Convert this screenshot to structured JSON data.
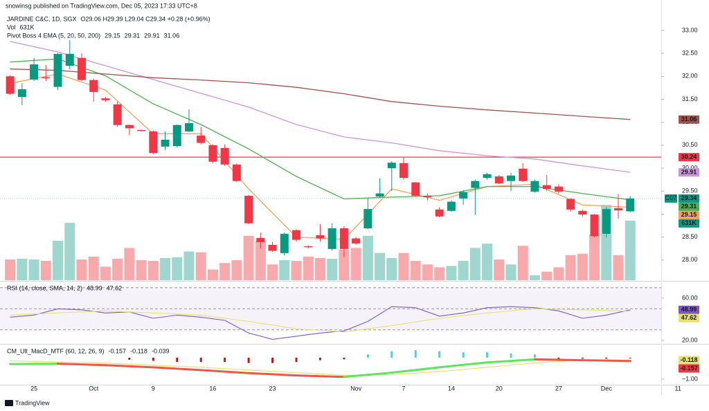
{
  "header": {
    "publisher": "snowinsg published on TradingView.com, Dec 05, 2023 17:33 UTC+8",
    "symbol": "JARDINE C&C, 1D, SGX",
    "quote": "O29.06 H29.39 L29.04 C29.34 +0.28 (+0.96%)"
  },
  "footer": "TradingView",
  "chart_data": [
    {
      "type": "candlestick",
      "xlim": [
        -0.85,
        54.6
      ],
      "xticks": [
        {
          "value": 2,
          "label": "25"
        },
        {
          "value": 7,
          "label": "Oct"
        },
        {
          "value": 12,
          "label": "9"
        },
        {
          "value": 17,
          "label": "16"
        },
        {
          "value": 22,
          "label": "23"
        },
        {
          "value": 29,
          "label": "Nov"
        },
        {
          "value": 33,
          "label": "7"
        },
        {
          "value": 37,
          "label": "14"
        },
        {
          "value": 41,
          "label": "20"
        },
        {
          "value": 46,
          "label": "27"
        },
        {
          "value": 50,
          "label": "Dec"
        },
        {
          "value": 56,
          "label": "11"
        }
      ],
      "ylim": [
        27.56,
        33.21
      ],
      "yticks": [
        {
          "value": 28,
          "label": "28.00"
        },
        {
          "value": 28.5,
          "label": "28.50"
        },
        {
          "value": 29,
          "label": "29.00"
        },
        {
          "value": 29.5,
          "label": "29.50"
        },
        {
          "value": 30,
          "label": "30.00"
        },
        {
          "value": 30.5,
          "label": "30.50"
        },
        {
          "value": 31,
          "label": "31.00"
        },
        {
          "value": 31.5,
          "label": "31.50"
        },
        {
          "value": 32,
          "label": "32.00"
        },
        {
          "value": 32.5,
          "label": "32.50"
        },
        {
          "value": 33,
          "label": "33.00"
        }
      ],
      "up_color": "#089981",
      "down_color": "#f23645",
      "open": [
        32.0,
        31.55,
        31.93,
        31.98,
        31.77,
        32.23,
        32.4,
        31.92,
        31.52,
        31.39,
        30.94,
        30.83,
        30.8,
        30.47,
        30.48,
        30.8,
        30.71,
        30.5,
        30.44,
        30.08,
        29.4,
        28.48,
        28.33,
        28.15,
        28.65,
        28.3,
        28.54,
        28.24,
        28.69,
        28.47,
        28.69,
        29.38,
        30.0,
        30.11,
        29.69,
        29.4,
        29.1,
        29.07,
        29.34,
        29.57,
        29.79,
        29.82,
        29.72,
        29.99,
        29.49,
        29.63,
        29.6,
        29.33,
        29.07,
        28.99,
        28.57,
        29.13,
        29.06
      ],
      "high": [
        32.02,
        31.85,
        32.4,
        32.25,
        32.5,
        32.79,
        32.5,
        31.95,
        31.55,
        31.45,
        30.95,
        30.84,
        30.82,
        30.8,
        30.95,
        31.28,
        30.9,
        30.52,
        30.52,
        30.1,
        29.42,
        28.6,
        28.4,
        28.6,
        28.67,
        28.32,
        28.78,
        28.8,
        28.74,
        28.5,
        29.36,
        29.78,
        30.15,
        30.23,
        29.7,
        29.45,
        29.15,
        29.3,
        29.52,
        29.75,
        29.9,
        29.85,
        29.9,
        30.11,
        29.75,
        29.85,
        29.65,
        29.35,
        29.1,
        29.0,
        29.15,
        29.44,
        29.39
      ],
      "low": [
        31.6,
        31.37,
        31.9,
        31.9,
        31.7,
        32.15,
        31.9,
        31.45,
        31.45,
        30.9,
        30.72,
        30.8,
        30.3,
        30.4,
        30.45,
        30.78,
        30.52,
        30.1,
        30.05,
        29.7,
        28.78,
        28.25,
        28.18,
        28.1,
        28.4,
        28.25,
        28.4,
        28.2,
        28.06,
        28.33,
        28.67,
        29.35,
        29.5,
        29.75,
        29.38,
        29.3,
        28.93,
        29.05,
        29.2,
        28.98,
        29.75,
        29.65,
        29.5,
        29.7,
        29.47,
        29.5,
        29.45,
        29.05,
        28.95,
        28.5,
        28.49,
        28.9,
        29.04
      ],
      "close": [
        31.62,
        31.72,
        32.26,
        31.96,
        32.49,
        32.49,
        31.92,
        31.66,
        31.48,
        30.94,
        30.87,
        30.81,
        30.33,
        30.62,
        30.94,
        30.98,
        30.55,
        30.14,
        30.08,
        29.72,
        28.8,
        28.39,
        28.2,
        28.57,
        28.44,
        28.28,
        28.47,
        28.69,
        28.24,
        28.36,
        29.11,
        29.45,
        30.12,
        29.79,
        29.4,
        29.37,
        28.95,
        29.27,
        29.48,
        29.72,
        29.87,
        29.67,
        29.84,
        29.72,
        29.72,
        29.55,
        29.49,
        29.1,
        28.99,
        28.52,
        29.11,
        29.08,
        29.34
      ],
      "close_tag": "C07",
      "close_label": "29.34",
      "close_line_color": "#9ad9ce",
      "volume": {
        "name": "Vol",
        "last_label": "631K",
        "ylim": [
          0,
          2750
        ],
        "up_color": "#9fd6cd",
        "down_color": "#f7a9ab",
        "values": [
          220,
          228,
          220,
          205,
          418,
          608,
          220,
          251,
          144,
          228,
          342,
          213,
          205,
          236,
          243,
          304,
          296,
          114,
          182,
          213,
          471,
          418,
          167,
          213,
          205,
          251,
          236,
          228,
          327,
          342,
          471,
          289,
          236,
          289,
          205,
          167,
          137,
          152,
          205,
          342,
          388,
          220,
          167,
          365,
          53,
          91,
          137,
          266,
          281,
          486,
          798,
          266,
          631
        ]
      },
      "indicator": "Pivot Boss 4 EMA (5, 20, 50, 200)",
      "series": [
        {
          "last_label": "29.15",
          "color": "#f5a25d",
          "x": [
            0,
            4,
            8,
            12,
            16,
            20,
            24,
            28,
            32,
            36,
            40,
            44,
            48,
            52
          ],
          "values": [
            31.85,
            32.05,
            31.7,
            30.75,
            30.75,
            29.55,
            28.5,
            28.45,
            29.55,
            29.3,
            29.6,
            29.65,
            29.2,
            29.15
          ]
        },
        {
          "last_label": "29.31",
          "color": "#4caf50",
          "x": [
            0,
            4,
            8,
            12,
            16,
            20,
            24,
            28,
            32,
            36,
            40,
            44,
            48,
            52
          ],
          "values": [
            32.31,
            32.38,
            32.01,
            31.4,
            30.95,
            30.42,
            29.82,
            29.33,
            29.37,
            29.4,
            29.6,
            29.6,
            29.45,
            29.31
          ]
        },
        {
          "last_label": "29.91",
          "color": "#ce93d8",
          "x": [
            0,
            4,
            8,
            12,
            16,
            20,
            24,
            28,
            32,
            36,
            40,
            44,
            48,
            52
          ],
          "values": [
            32.76,
            32.53,
            32.23,
            31.93,
            31.63,
            31.33,
            30.95,
            30.68,
            30.55,
            30.38,
            30.27,
            30.2,
            30.05,
            29.91
          ]
        },
        {
          "last_label": "31.06",
          "color": "#a0524b",
          "x": [
            0,
            4,
            8,
            12,
            16,
            20,
            24,
            28,
            32,
            36,
            40,
            44,
            48,
            52
          ],
          "values": [
            32.16,
            32.13,
            32.05,
            31.97,
            31.92,
            31.86,
            31.76,
            31.62,
            31.45,
            31.35,
            31.27,
            31.2,
            31.13,
            31.06
          ]
        }
      ],
      "hlines": [
        {
          "value": 30.24,
          "label": "30.24",
          "color": "#f23645"
        }
      ]
    },
    {
      "type": "line",
      "title": "RSI (14, close, SMA, 14, 2)",
      "ylim": [
        16.7,
        75.1
      ],
      "yticks": [
        {
          "value": 20,
          "label": "20.00"
        },
        {
          "value": 60,
          "label": "60.00"
        }
      ],
      "levels": [
        30,
        50,
        70
      ],
      "band_color": "#7e57c2",
      "series": [
        {
          "last_label": "48.99",
          "color": "#7e57c2",
          "x": [
            0,
            2,
            4,
            6,
            8,
            10,
            12,
            14,
            16,
            18,
            20,
            22,
            24,
            26,
            28,
            30,
            32,
            34,
            36,
            38,
            40,
            42,
            44,
            46,
            48,
            50,
            52
          ],
          "values": [
            42,
            44,
            50,
            49,
            46,
            47,
            41,
            44,
            42,
            39,
            27,
            21,
            24,
            27,
            29,
            38,
            52,
            51,
            43,
            46,
            51,
            52,
            51,
            48,
            41,
            44,
            48.99
          ]
        },
        {
          "last_label": "47.62",
          "color": "#e6e36a",
          "x": [
            0,
            4,
            8,
            12,
            16,
            20,
            24,
            28,
            32,
            36,
            40,
            44,
            48,
            52
          ],
          "values": [
            44,
            46,
            48,
            46,
            44,
            38,
            31,
            28,
            34,
            41,
            46,
            50,
            49,
            47.62
          ]
        }
      ]
    },
    {
      "type": "macd",
      "title": "CM_Ult_MacD_MTF (60, 12, 26, 9)",
      "ylim": [
        -1.23,
        0.61
      ],
      "yticks": [
        {
          "value": -1,
          "label": "−1.00"
        }
      ],
      "macd": {
        "last_label": "-0.157",
        "color": "#f23645",
        "up_color": "#5ce65c",
        "down_color": "#f0554a",
        "x": [
          0,
          4,
          8,
          12,
          16,
          20,
          24,
          28,
          32,
          36,
          40,
          44,
          48,
          52
        ],
        "values": [
          -0.3,
          -0.28,
          -0.35,
          -0.45,
          -0.58,
          -0.72,
          -0.83,
          -0.9,
          -0.7,
          -0.45,
          -0.22,
          -0.08,
          -0.12,
          -0.157
        ]
      },
      "signal": {
        "last_label": "-0.118",
        "color": "#e6e36a",
        "x": [
          0,
          8,
          16,
          24,
          28,
          32,
          36,
          40,
          44,
          48,
          52
        ],
        "values": [
          -0.15,
          -0.25,
          -0.45,
          -0.7,
          -0.82,
          -0.8,
          -0.65,
          -0.45,
          -0.25,
          -0.1,
          -0.118
        ]
      },
      "histogram": {
        "last_label": "-0.039",
        "up_color": "#4dd0e1",
        "down_color": "#b71c1c",
        "x": [
          10,
          12,
          14,
          16,
          18,
          20,
          22,
          24,
          26,
          28,
          30,
          32,
          34,
          36,
          38,
          40,
          42,
          44,
          46,
          48,
          50,
          52
        ],
        "values": [
          -0.1,
          -0.15,
          -0.2,
          -0.2,
          -0.2,
          -0.25,
          -0.25,
          -0.2,
          -0.12,
          -0.08,
          0.15,
          0.3,
          0.35,
          0.3,
          0.25,
          0.25,
          0.2,
          0.15,
          -0.05,
          -0.05,
          -0.05,
          -0.039
        ]
      }
    }
  ]
}
